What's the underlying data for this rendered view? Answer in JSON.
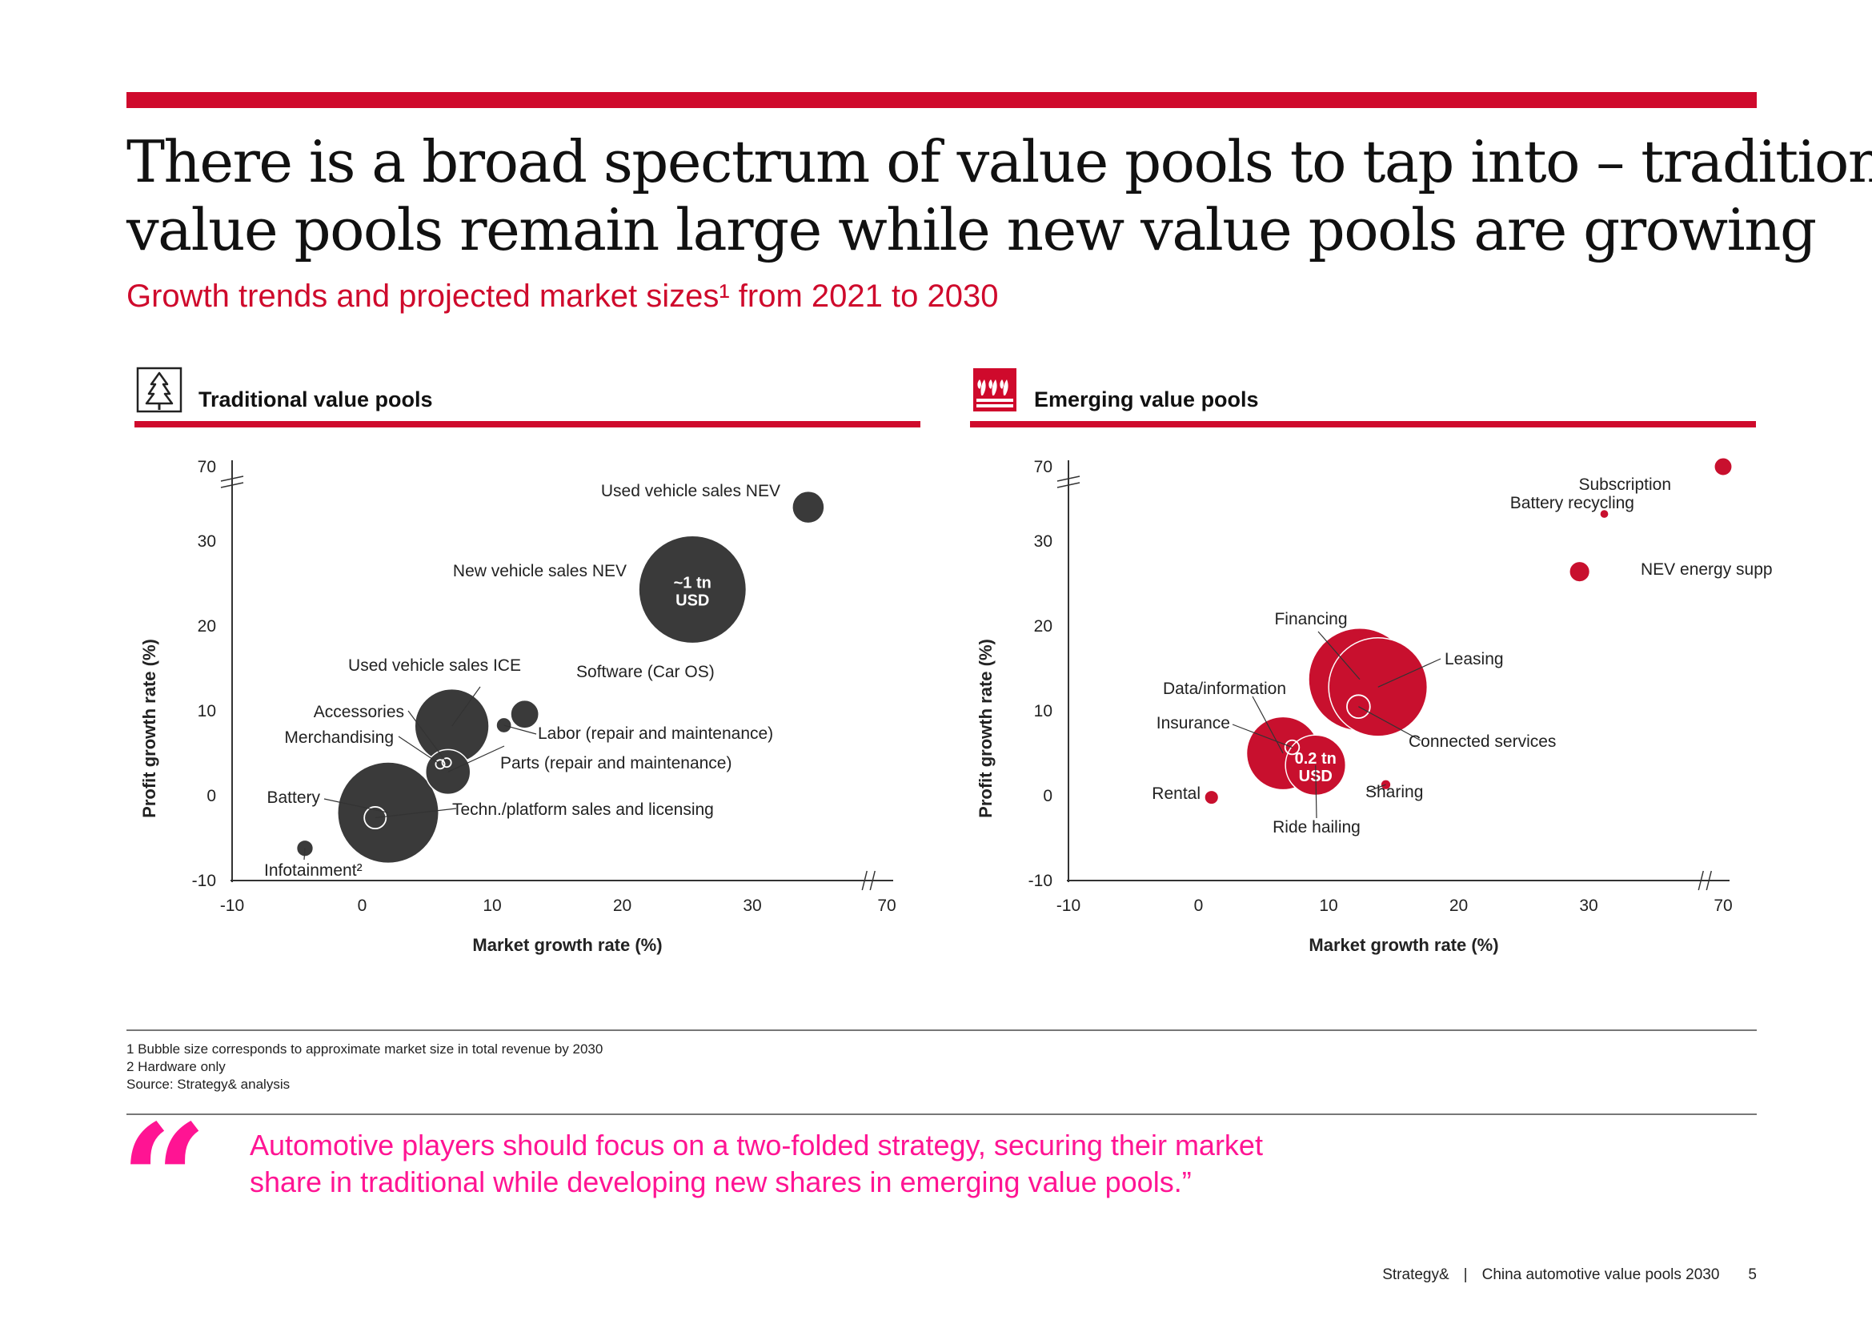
{
  "header": {
    "title_line1": "There is a broad spectrum of value pools to tap into – traditional",
    "title_line2": "value pools remain large while new value pools are growing",
    "subtitle": "Growth trends and projected market sizes¹ from 2021 to 2030"
  },
  "colors": {
    "accent": "#cf0a2c",
    "dark_bubble": "#3a3a3a",
    "red_bubble": "#c8102e",
    "quote": "#ff1493"
  },
  "panels": {
    "traditional": {
      "title": "Traditional value pools",
      "icon": "tree-icon"
    },
    "emerging": {
      "title": "Emerging value pools",
      "icon": "plants-icon"
    }
  },
  "chart_data": [
    {
      "type": "scatter",
      "title": "Traditional value pools",
      "xlabel": "Market growth rate (%)",
      "ylabel": "Profit growth rate (%)",
      "xlim": [
        -10,
        70
      ],
      "ylim": [
        -10,
        70
      ],
      "axis_break": {
        "x": [
          35,
          70
        ],
        "y": [
          35,
          70
        ]
      },
      "x_ticks": [
        "-10",
        "0",
        "10",
        "20",
        "30",
        "70"
      ],
      "y_ticks": [
        "-10",
        "0",
        "10",
        "20",
        "30",
        "70"
      ],
      "grid": false,
      "points": [
        {
          "label": "Used vehicle sales NEV",
          "x": 34.3,
          "y": 34.0,
          "size": 25
        },
        {
          "label": "New vehicle sales NEV",
          "x": 25.4,
          "y": 24.3,
          "size": 84,
          "inner_label": "~1 tn USD"
        },
        {
          "label": "Used vehicle sales ICE",
          "x": 6.9,
          "y": 8.2,
          "size": 58
        },
        {
          "label": "Software (Car OS)",
          "x": 12.5,
          "y": 9.6,
          "size": 22
        },
        {
          "label": "Labor (repair and maintenance)",
          "x": 10.9,
          "y": 8.3,
          "size": 12
        },
        {
          "label": "Parts (repair and maintenance)",
          "x": 6.6,
          "y": 2.8,
          "size": 35
        },
        {
          "label": "Accessories",
          "x": 6.5,
          "y": 3.9,
          "size": 7
        },
        {
          "label": "Merchandising",
          "x": 6.0,
          "y": 3.7,
          "size": 7
        },
        {
          "label": "Battery",
          "x": 2.0,
          "y": -2.0,
          "size": 79
        },
        {
          "label": "Techn./platform sales and licensing",
          "x": 1.0,
          "y": -2.6,
          "size": 17
        },
        {
          "label": "Infotainment²",
          "x": -4.4,
          "y": -6.2,
          "size": 13
        }
      ]
    },
    {
      "type": "scatter",
      "title": "Emerging value pools",
      "xlabel": "Market growth rate (%)",
      "ylabel": "Profit growth rate (%)",
      "xlim": [
        -10,
        70
      ],
      "ylim": [
        -10,
        70
      ],
      "axis_break": {
        "x": [
          35,
          70
        ],
        "y": [
          35,
          70
        ]
      },
      "x_ticks": [
        "-10",
        "0",
        "10",
        "20",
        "30",
        "70"
      ],
      "y_ticks": [
        "-10",
        "0",
        "10",
        "20",
        "30",
        "70"
      ],
      "grid": false,
      "points": [
        {
          "label": "Subscription",
          "x": 37.1,
          "y": 35.2,
          "size": 14
        },
        {
          "label": "Battery recycling",
          "x": 31.2,
          "y": 33.2,
          "size": 7
        },
        {
          "label": "NEV energy supply",
          "x": 29.3,
          "y": 26.4,
          "size": 16
        },
        {
          "label": "Financing",
          "x": 12.4,
          "y": 13.7,
          "size": 80
        },
        {
          "label": "Leasing",
          "x": 13.8,
          "y": 12.8,
          "size": 77
        },
        {
          "label": "Connected services",
          "x": 12.3,
          "y": 10.5,
          "size": 18
        },
        {
          "label": "Data/information",
          "x": 6.5,
          "y": 5.0,
          "size": 57
        },
        {
          "label": "Insurance",
          "x": 7.2,
          "y": 5.7,
          "size": 11
        },
        {
          "label": "Ride hailing",
          "x": 9.0,
          "y": 3.6,
          "size": 47,
          "inner_label": "0.2 tn USD"
        },
        {
          "label": "Sharing",
          "x": 14.4,
          "y": 1.3,
          "size": 8
        },
        {
          "label": "Rental",
          "x": 1.0,
          "y": -0.2,
          "size": 11
        }
      ]
    }
  ],
  "footnotes": {
    "note1": "1 Bubble size corresponds to approximate market size in total revenue by 2030",
    "note2": "2 Hardware only",
    "source": "Source: Strategy& analysis"
  },
  "quote": {
    "mark": "“",
    "line1": "Automotive players should focus on a two-folded strategy, securing their market",
    "line2": "share in traditional while developing new shares in emerging value pools.”"
  },
  "footer": {
    "brand": "Strategy&",
    "separator": "|",
    "doc": "China automotive value pools 2030",
    "page": "5"
  }
}
